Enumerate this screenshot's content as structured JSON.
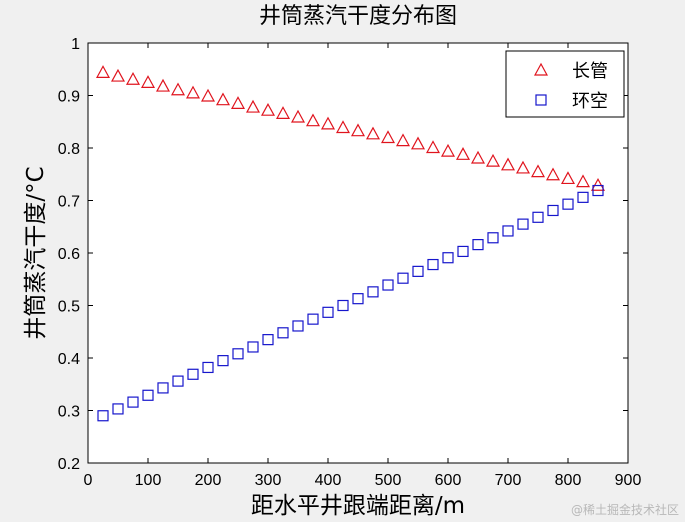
{
  "chart_data": {
    "type": "scatter",
    "title": "井筒蒸汽干度分布图",
    "xlabel": "距水平井跟端距离/m",
    "ylabel": "井筒蒸汽干度/°C",
    "xlim": [
      0,
      900
    ],
    "ylim": [
      0.2,
      1.0
    ],
    "xticks": [
      0,
      100,
      200,
      300,
      400,
      500,
      600,
      700,
      800,
      900
    ],
    "xtick_labels": [
      "0",
      "100",
      "200",
      "300",
      "400",
      "500",
      "600",
      "700",
      "800",
      "900"
    ],
    "yticks": [
      0.2,
      0.3,
      0.4,
      0.5,
      0.6,
      0.7,
      0.8,
      0.9,
      1.0
    ],
    "ytick_labels": [
      "0.2",
      "0.3",
      "0.4",
      "0.5",
      "0.6",
      "0.7",
      "0.8",
      "0.9",
      "1"
    ],
    "grid": false,
    "legend_position": "top-right",
    "series": [
      {
        "name": "长管",
        "marker": "triangle",
        "color": "#e0141e",
        "x": [
          25,
          50,
          75,
          100,
          125,
          150,
          175,
          200,
          225,
          250,
          275,
          300,
          325,
          350,
          375,
          400,
          425,
          450,
          475,
          500,
          525,
          550,
          575,
          600,
          625,
          650,
          675,
          700,
          725,
          750,
          775,
          800,
          825,
          850
        ],
        "y": [
          0.944,
          0.937,
          0.931,
          0.925,
          0.918,
          0.911,
          0.905,
          0.899,
          0.892,
          0.885,
          0.878,
          0.872,
          0.866,
          0.859,
          0.852,
          0.846,
          0.839,
          0.833,
          0.827,
          0.82,
          0.814,
          0.808,
          0.801,
          0.794,
          0.788,
          0.781,
          0.775,
          0.768,
          0.762,
          0.755,
          0.749,
          0.742,
          0.736,
          0.729
        ]
      },
      {
        "name": "环空",
        "marker": "square",
        "color": "#1616cc",
        "x": [
          25,
          50,
          75,
          100,
          125,
          150,
          175,
          200,
          225,
          250,
          275,
          300,
          325,
          350,
          375,
          400,
          425,
          450,
          475,
          500,
          525,
          550,
          575,
          600,
          625,
          650,
          675,
          700,
          725,
          750,
          775,
          800,
          825,
          850
        ],
        "y": [
          0.29,
          0.303,
          0.316,
          0.329,
          0.343,
          0.356,
          0.369,
          0.382,
          0.395,
          0.408,
          0.421,
          0.435,
          0.448,
          0.461,
          0.474,
          0.487,
          0.5,
          0.513,
          0.526,
          0.539,
          0.552,
          0.565,
          0.578,
          0.591,
          0.603,
          0.616,
          0.629,
          0.642,
          0.655,
          0.668,
          0.681,
          0.693,
          0.706,
          0.719
        ]
      }
    ]
  },
  "watermark": "@稀土掘金技术社区"
}
